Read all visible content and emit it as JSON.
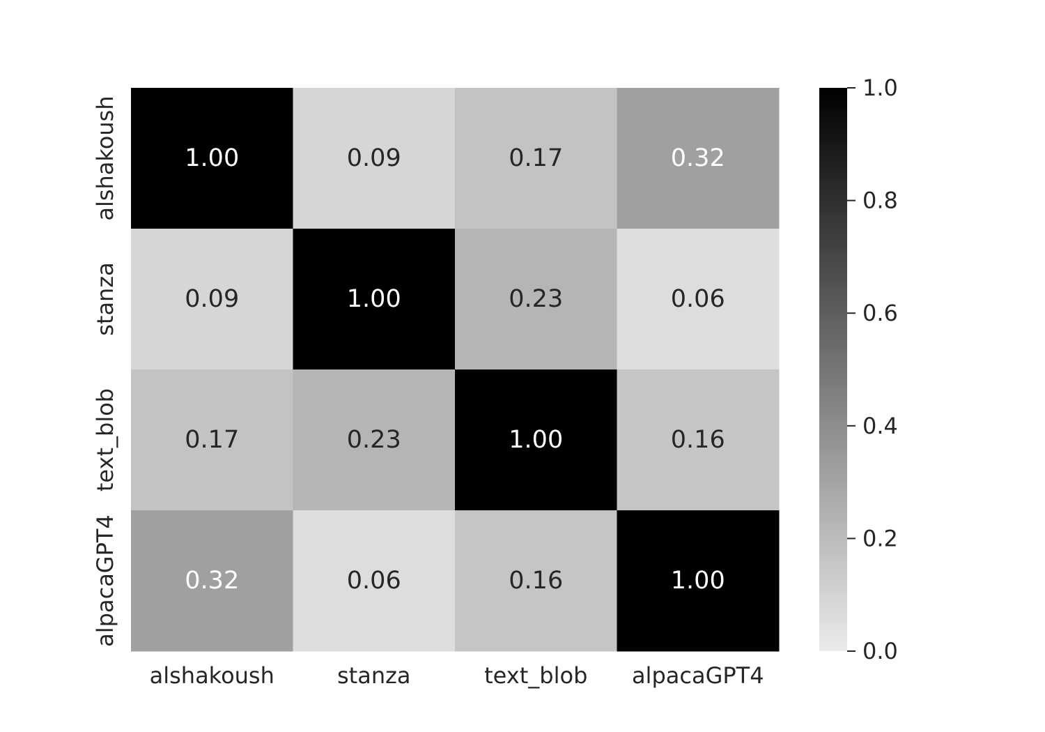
{
  "chart_data": {
    "type": "heatmap",
    "title": "",
    "xlabel": "",
    "ylabel": "",
    "x_categories": [
      "alshakoush",
      "stanza",
      "text_blob",
      "alpacaGPT4"
    ],
    "y_categories": [
      "alshakoush",
      "stanza",
      "text_blob",
      "alpacaGPT4"
    ],
    "values": [
      [
        1.0,
        0.09,
        0.17,
        0.32
      ],
      [
        0.09,
        1.0,
        0.23,
        0.06
      ],
      [
        0.17,
        0.23,
        1.0,
        0.16
      ],
      [
        0.32,
        0.06,
        0.16,
        1.0
      ]
    ],
    "value_format": "2 decimals",
    "colorbar": {
      "min": 0.0,
      "max": 1.0,
      "ticks": [
        0.0,
        0.2,
        0.4,
        0.6,
        0.8,
        1.0
      ],
      "tick_labels": [
        "0.0",
        "0.2",
        "0.4",
        "0.6",
        "0.8",
        "1.0"
      ],
      "placement": "right"
    },
    "colormap": {
      "low": "#ebebeb",
      "high": "#000000"
    },
    "grid": false,
    "legend": "none"
  }
}
